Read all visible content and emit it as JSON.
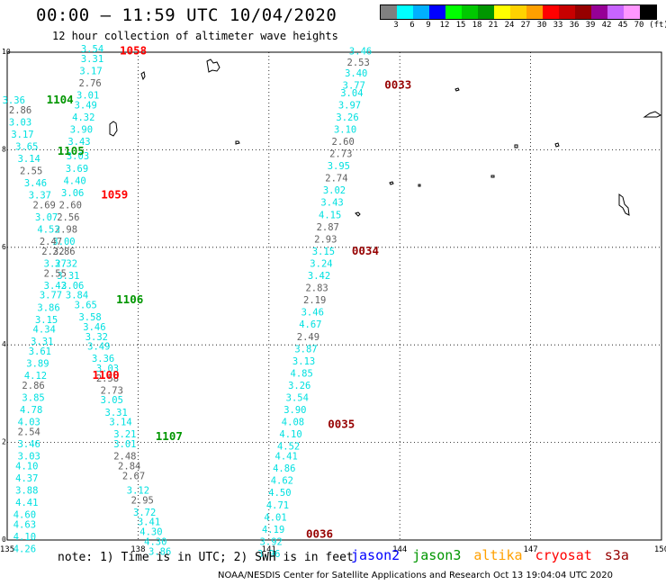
{
  "title": "00:00 – 11:59 UTC 10/04/2020",
  "subtitle": "12 hour collection of altimeter wave heights",
  "legend": {
    "unit": "(ft)",
    "swatches": [
      "#808080",
      "#00ffff",
      "#00b0ff",
      "#0000ff",
      "#00ff00",
      "#00c800",
      "#009600",
      "#ffff00",
      "#ffd200",
      "#ffa000",
      "#ff0000",
      "#c80000",
      "#960000",
      "#960096",
      "#c864ff",
      "#ff96ff",
      "#000000"
    ],
    "labels": [
      "3",
      "6",
      "9",
      "12",
      "15",
      "18",
      "21",
      "24",
      "27",
      "30",
      "33",
      "36",
      "39",
      "42",
      "45",
      "70"
    ]
  },
  "axes": {
    "x_ticks": [
      "135",
      "138",
      "141",
      "144",
      "147",
      "150"
    ],
    "y_ticks": [
      "0",
      "2",
      "4",
      "6",
      "8",
      "10"
    ]
  },
  "note": "note: 1) Time is in UTC; 2) SWH is in feet",
  "satellites": [
    {
      "name": "jason2",
      "color": "#0000ff"
    },
    {
      "name": "jason3",
      "color": "#009600"
    },
    {
      "name": "altika",
      "color": "#ffa000"
    },
    {
      "name": "cryosat",
      "color": "#ff0000"
    },
    {
      "name": "s3a",
      "color": "#960000"
    }
  ],
  "credit": "NOAA/NESDIS Center for Satellite Applications and Research   Oct 13 19:04:04 UTC 2020",
  "time_labels": [
    {
      "text": "1058",
      "color": "#ff0000",
      "lon": 137.58,
      "lat": 9.95
    },
    {
      "text": "1104",
      "color": "#009600",
      "lon": 135.9,
      "lat": 8.95
    },
    {
      "text": "1105",
      "color": "#009600",
      "lon": 136.15,
      "lat": 7.9
    },
    {
      "text": "1059",
      "color": "#ff0000",
      "lon": 137.15,
      "lat": 7.0
    },
    {
      "text": "1106",
      "color": "#009600",
      "lon": 137.5,
      "lat": 4.85
    },
    {
      "text": "1100",
      "color": "#ff0000",
      "lon": 136.95,
      "lat": 3.3
    },
    {
      "text": "1107",
      "color": "#009600",
      "lon": 138.4,
      "lat": 2.05
    },
    {
      "text": "0033",
      "color": "#960000",
      "lon": 143.65,
      "lat": 9.25
    },
    {
      "text": "0034",
      "color": "#960000",
      "lon": 142.9,
      "lat": 5.85
    },
    {
      "text": "0035",
      "color": "#960000",
      "lon": 142.35,
      "lat": 2.3
    },
    {
      "text": "0036",
      "color": "#960000",
      "lon": 141.85,
      "lat": 0.05
    }
  ],
  "tracks": [
    {
      "name": "jason3-track-a",
      "points": [
        {
          "lon": 136.95,
          "lat": 10.0,
          "v": "3.54",
          "c": "#00e0e0"
        },
        {
          "lon": 136.95,
          "lat": 9.8,
          "v": "3.31",
          "c": "#00e0e0"
        },
        {
          "lon": 136.92,
          "lat": 9.55,
          "v": "3.17",
          "c": "#00e0e0"
        },
        {
          "lon": 136.9,
          "lat": 9.3,
          "v": "2.76",
          "c": "#606060"
        },
        {
          "lon": 136.85,
          "lat": 9.05,
          "v": "3.01",
          "c": "#00e0e0"
        },
        {
          "lon": 136.8,
          "lat": 8.85,
          "v": "3.49",
          "c": "#00e0e0"
        },
        {
          "lon": 136.75,
          "lat": 8.6,
          "v": "4.32",
          "c": "#00e0e0"
        },
        {
          "lon": 136.7,
          "lat": 8.35,
          "v": "3.90",
          "c": "#00e0e0"
        },
        {
          "lon": 136.65,
          "lat": 8.1,
          "v": "3.43",
          "c": "#00e0e0"
        },
        {
          "lon": 136.62,
          "lat": 7.8,
          "v": "3.03",
          "c": "#00e0e0"
        },
        {
          "lon": 136.6,
          "lat": 7.55,
          "v": "3.69",
          "c": "#00e0e0"
        },
        {
          "lon": 136.55,
          "lat": 7.3,
          "v": "4.40",
          "c": "#00e0e0"
        },
        {
          "lon": 136.5,
          "lat": 7.05,
          "v": "3.06",
          "c": "#00e0e0"
        },
        {
          "lon": 136.45,
          "lat": 6.8,
          "v": "2.60",
          "c": "#606060"
        },
        {
          "lon": 136.4,
          "lat": 6.55,
          "v": "2.56",
          "c": "#606060"
        },
        {
          "lon": 136.35,
          "lat": 6.3,
          "v": "2.98",
          "c": "#606060"
        },
        {
          "lon": 136.3,
          "lat": 6.05,
          "v": "3.00",
          "c": "#00e0e0"
        },
        {
          "lon": 136.3,
          "lat": 5.85,
          "v": "2.86",
          "c": "#606060"
        },
        {
          "lon": 136.35,
          "lat": 5.6,
          "v": "3.32",
          "c": "#00e0e0"
        },
        {
          "lon": 136.4,
          "lat": 5.35,
          "v": "3.31",
          "c": "#00e0e0"
        },
        {
          "lon": 136.5,
          "lat": 5.15,
          "v": "3.06",
          "c": "#00e0e0"
        },
        {
          "lon": 136.6,
          "lat": 4.95,
          "v": "3.84",
          "c": "#00e0e0"
        },
        {
          "lon": 136.8,
          "lat": 4.75,
          "v": "3.65",
          "c": "#00e0e0"
        },
        {
          "lon": 136.9,
          "lat": 4.5,
          "v": "3.58",
          "c": "#00e0e0"
        },
        {
          "lon": 137.0,
          "lat": 4.3,
          "v": "3.46",
          "c": "#00e0e0"
        },
        {
          "lon": 137.05,
          "lat": 4.1,
          "v": "3.32",
          "c": "#00e0e0"
        },
        {
          "lon": 137.1,
          "lat": 3.9,
          "v": "3.49",
          "c": "#00e0e0"
        },
        {
          "lon": 137.2,
          "lat": 3.65,
          "v": "3.36",
          "c": "#00e0e0"
        },
        {
          "lon": 137.3,
          "lat": 3.45,
          "v": "3.03",
          "c": "#00e0e0"
        },
        {
          "lon": 137.3,
          "lat": 3.25,
          "v": "2.58",
          "c": "#606060"
        },
        {
          "lon": 137.4,
          "lat": 3.0,
          "v": "2.73",
          "c": "#606060"
        },
        {
          "lon": 137.4,
          "lat": 2.8,
          "v": "3.05",
          "c": "#00e0e0"
        },
        {
          "lon": 137.5,
          "lat": 2.55,
          "v": "3.31",
          "c": "#00e0e0"
        },
        {
          "lon": 137.6,
          "lat": 2.35,
          "v": "3.14",
          "c": "#00e0e0"
        },
        {
          "lon": 137.7,
          "lat": 2.1,
          "v": "3.21",
          "c": "#00e0e0"
        },
        {
          "lon": 137.7,
          "lat": 1.9,
          "v": "3.01",
          "c": "#00e0e0"
        },
        {
          "lon": 137.7,
          "lat": 1.65,
          "v": "2.48",
          "c": "#606060"
        },
        {
          "lon": 137.8,
          "lat": 1.45,
          "v": "2.84",
          "c": "#606060"
        },
        {
          "lon": 137.9,
          "lat": 1.25,
          "v": "2.67",
          "c": "#606060"
        },
        {
          "lon": 138.0,
          "lat": 0.95,
          "v": "3.12",
          "c": "#00e0e0"
        },
        {
          "lon": 138.1,
          "lat": 0.75,
          "v": "2.95",
          "c": "#606060"
        },
        {
          "lon": 138.15,
          "lat": 0.5,
          "v": "3.72",
          "c": "#00e0e0"
        },
        {
          "lon": 138.25,
          "lat": 0.3,
          "v": "3.41",
          "c": "#00e0e0"
        },
        {
          "lon": 138.3,
          "lat": 0.1,
          "v": "4.30",
          "c": "#00e0e0"
        },
        {
          "lon": 138.4,
          "lat": -0.1,
          "v": "4.30",
          "c": "#00e0e0"
        },
        {
          "lon": 138.5,
          "lat": -0.3,
          "v": "3.86",
          "c": "#00e0e0"
        }
      ]
    },
    {
      "name": "jason3-track-b",
      "points": [
        {
          "lon": 135.15,
          "lat": 8.95,
          "v": "3.36",
          "c": "#00e0e0"
        },
        {
          "lon": 135.3,
          "lat": 8.75,
          "v": "2.86",
          "c": "#606060"
        },
        {
          "lon": 135.3,
          "lat": 8.5,
          "v": "3.03",
          "c": "#00e0e0"
        },
        {
          "lon": 135.35,
          "lat": 8.25,
          "v": "3.17",
          "c": "#00e0e0"
        },
        {
          "lon": 135.45,
          "lat": 8.0,
          "v": "3.65",
          "c": "#00e0e0"
        },
        {
          "lon": 135.5,
          "lat": 7.75,
          "v": "3.14",
          "c": "#00e0e0"
        },
        {
          "lon": 135.55,
          "lat": 7.5,
          "v": "2.55",
          "c": "#606060"
        },
        {
          "lon": 135.65,
          "lat": 7.25,
          "v": "3.46",
          "c": "#00e0e0"
        },
        {
          "lon": 135.75,
          "lat": 7.0,
          "v": "3.37",
          "c": "#00e0e0"
        },
        {
          "lon": 135.85,
          "lat": 6.8,
          "v": "2.69",
          "c": "#606060"
        },
        {
          "lon": 135.9,
          "lat": 6.55,
          "v": "3.07",
          "c": "#00e0e0"
        },
        {
          "lon": 135.95,
          "lat": 6.3,
          "v": "4.53",
          "c": "#00e0e0"
        },
        {
          "lon": 136.0,
          "lat": 6.05,
          "v": "2.47",
          "c": "#606060"
        },
        {
          "lon": 136.05,
          "lat": 5.85,
          "v": "2.32",
          "c": "#606060"
        },
        {
          "lon": 136.1,
          "lat": 5.6,
          "v": "3.27",
          "c": "#00e0e0"
        },
        {
          "lon": 136.1,
          "lat": 5.4,
          "v": "2.55",
          "c": "#606060"
        },
        {
          "lon": 136.1,
          "lat": 5.15,
          "v": "3.42",
          "c": "#00e0e0"
        },
        {
          "lon": 136.0,
          "lat": 4.95,
          "v": "3.77",
          "c": "#00e0e0"
        },
        {
          "lon": 135.95,
          "lat": 4.7,
          "v": "3.86",
          "c": "#00e0e0"
        },
        {
          "lon": 135.9,
          "lat": 4.45,
          "v": "3.15",
          "c": "#00e0e0"
        },
        {
          "lon": 135.85,
          "lat": 4.25,
          "v": "4.34",
          "c": "#00e0e0"
        },
        {
          "lon": 135.8,
          "lat": 4.0,
          "v": "3.31",
          "c": "#00e0e0"
        },
        {
          "lon": 135.75,
          "lat": 3.8,
          "v": "3.61",
          "c": "#00e0e0"
        },
        {
          "lon": 135.7,
          "lat": 3.55,
          "v": "3.89",
          "c": "#00e0e0"
        },
        {
          "lon": 135.65,
          "lat": 3.3,
          "v": "4.12",
          "c": "#00e0e0"
        },
        {
          "lon": 135.6,
          "lat": 3.1,
          "v": "2.86",
          "c": "#606060"
        },
        {
          "lon": 135.6,
          "lat": 2.85,
          "v": "3.85",
          "c": "#00e0e0"
        },
        {
          "lon": 135.55,
          "lat": 2.6,
          "v": "4.78",
          "c": "#00e0e0"
        },
        {
          "lon": 135.5,
          "lat": 2.35,
          "v": "4.03",
          "c": "#00e0e0"
        },
        {
          "lon": 135.5,
          "lat": 2.15,
          "v": "2.54",
          "c": "#606060"
        },
        {
          "lon": 135.5,
          "lat": 1.9,
          "v": "3.46",
          "c": "#00e0e0"
        },
        {
          "lon": 135.5,
          "lat": 1.65,
          "v": "3.03",
          "c": "#00e0e0"
        },
        {
          "lon": 135.45,
          "lat": 1.45,
          "v": "4.10",
          "c": "#00e0e0"
        },
        {
          "lon": 135.45,
          "lat": 1.2,
          "v": "4.37",
          "c": "#00e0e0"
        },
        {
          "lon": 135.45,
          "lat": 0.95,
          "v": "3.88",
          "c": "#00e0e0"
        },
        {
          "lon": 135.45,
          "lat": 0.7,
          "v": "4.41",
          "c": "#00e0e0"
        },
        {
          "lon": 135.4,
          "lat": 0.45,
          "v": "4.60",
          "c": "#00e0e0"
        },
        {
          "lon": 135.4,
          "lat": 0.25,
          "v": "4.63",
          "c": "#00e0e0"
        },
        {
          "lon": 135.4,
          "lat": 0.0,
          "v": "4.10",
          "c": "#00e0e0"
        },
        {
          "lon": 135.4,
          "lat": -0.25,
          "v": "4.26",
          "c": "#00e0e0"
        }
      ]
    },
    {
      "name": "s3a-track",
      "points": [
        {
          "lon": 143.1,
          "lat": 9.95,
          "v": "3.46",
          "c": "#00e0e0"
        },
        {
          "lon": 143.05,
          "lat": 9.72,
          "v": "2.53",
          "c": "#606060"
        },
        {
          "lon": 143.0,
          "lat": 9.5,
          "v": "3.40",
          "c": "#00e0e0"
        },
        {
          "lon": 142.95,
          "lat": 9.25,
          "v": "3.77",
          "c": "#00e0e0"
        },
        {
          "lon": 142.9,
          "lat": 9.1,
          "v": "3.04",
          "c": "#00e0e0"
        },
        {
          "lon": 142.85,
          "lat": 8.85,
          "v": "3.97",
          "c": "#00e0e0"
        },
        {
          "lon": 142.8,
          "lat": 8.6,
          "v": "3.26",
          "c": "#00e0e0"
        },
        {
          "lon": 142.75,
          "lat": 8.35,
          "v": "3.10",
          "c": "#00e0e0"
        },
        {
          "lon": 142.7,
          "lat": 8.1,
          "v": "2.60",
          "c": "#606060"
        },
        {
          "lon": 142.65,
          "lat": 7.85,
          "v": "2.73",
          "c": "#606060"
        },
        {
          "lon": 142.6,
          "lat": 7.6,
          "v": "3.95",
          "c": "#00e0e0"
        },
        {
          "lon": 142.55,
          "lat": 7.35,
          "v": "2.74",
          "c": "#606060"
        },
        {
          "lon": 142.5,
          "lat": 7.1,
          "v": "3.02",
          "c": "#00e0e0"
        },
        {
          "lon": 142.45,
          "lat": 6.85,
          "v": "3.43",
          "c": "#00e0e0"
        },
        {
          "lon": 142.4,
          "lat": 6.6,
          "v": "4.15",
          "c": "#00e0e0"
        },
        {
          "lon": 142.35,
          "lat": 6.35,
          "v": "2.87",
          "c": "#606060"
        },
        {
          "lon": 142.3,
          "lat": 6.1,
          "v": "2.93",
          "c": "#606060"
        },
        {
          "lon": 142.25,
          "lat": 5.85,
          "v": "3.15",
          "c": "#00e0e0"
        },
        {
          "lon": 142.2,
          "lat": 5.6,
          "v": "3.24",
          "c": "#00e0e0"
        },
        {
          "lon": 142.15,
          "lat": 5.35,
          "v": "3.42",
          "c": "#00e0e0"
        },
        {
          "lon": 142.1,
          "lat": 5.1,
          "v": "2.83",
          "c": "#606060"
        },
        {
          "lon": 142.05,
          "lat": 4.85,
          "v": "2.19",
          "c": "#606060"
        },
        {
          "lon": 142.0,
          "lat": 4.6,
          "v": "3.46",
          "c": "#00e0e0"
        },
        {
          "lon": 141.95,
          "lat": 4.35,
          "v": "4.67",
          "c": "#00e0e0"
        },
        {
          "lon": 141.9,
          "lat": 4.1,
          "v": "2.49",
          "c": "#606060"
        },
        {
          "lon": 141.85,
          "lat": 3.85,
          "v": "3.87",
          "c": "#00e0e0"
        },
        {
          "lon": 141.8,
          "lat": 3.6,
          "v": "3.13",
          "c": "#00e0e0"
        },
        {
          "lon": 141.75,
          "lat": 3.35,
          "v": "4.85",
          "c": "#00e0e0"
        },
        {
          "lon": 141.7,
          "lat": 3.1,
          "v": "3.26",
          "c": "#00e0e0"
        },
        {
          "lon": 141.65,
          "lat": 2.85,
          "v": "3.54",
          "c": "#00e0e0"
        },
        {
          "lon": 141.6,
          "lat": 2.6,
          "v": "3.90",
          "c": "#00e0e0"
        },
        {
          "lon": 141.55,
          "lat": 2.35,
          "v": "4.08",
          "c": "#00e0e0"
        },
        {
          "lon": 141.5,
          "lat": 2.1,
          "v": "4.10",
          "c": "#00e0e0"
        },
        {
          "lon": 141.45,
          "lat": 1.85,
          "v": "4.52",
          "c": "#00e0e0"
        },
        {
          "lon": 141.4,
          "lat": 1.65,
          "v": "4.41",
          "c": "#00e0e0"
        },
        {
          "lon": 141.35,
          "lat": 1.4,
          "v": "4.86",
          "c": "#00e0e0"
        },
        {
          "lon": 141.3,
          "lat": 1.15,
          "v": "4.62",
          "c": "#00e0e0"
        },
        {
          "lon": 141.25,
          "lat": 0.9,
          "v": "4.50",
          "c": "#00e0e0"
        },
        {
          "lon": 141.2,
          "lat": 0.65,
          "v": "4.71",
          "c": "#00e0e0"
        },
        {
          "lon": 141.15,
          "lat": 0.4,
          "v": "4.01",
          "c": "#00e0e0"
        },
        {
          "lon": 141.1,
          "lat": 0.15,
          "v": "4.19",
          "c": "#00e0e0"
        },
        {
          "lon": 141.05,
          "lat": -0.1,
          "v": "3.92",
          "c": "#00e0e0"
        },
        {
          "lon": 141.0,
          "lat": -0.35,
          "v": "3.96",
          "c": "#00e0e0"
        }
      ]
    }
  ]
}
